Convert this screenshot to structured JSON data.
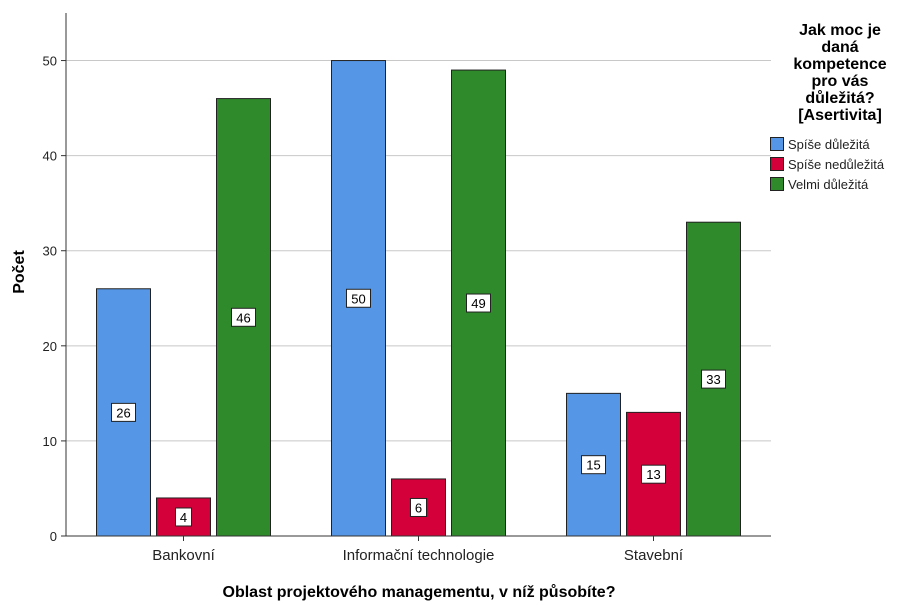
{
  "chart_data": {
    "type": "bar",
    "xlabel": "Oblast projektového managementu, v níž působíte?",
    "ylabel": "Počet",
    "categories": [
      "Bankovní",
      "Informační technologie",
      "Stavební"
    ],
    "ylim": [
      0,
      55
    ],
    "yticks": [
      0,
      10,
      20,
      30,
      40,
      50
    ],
    "grid": true,
    "legend_position": "right",
    "legend_title": "Jak moc je daná kompetence pro vás důležitá? [Asertivita]",
    "legend_title_lines": [
      "Jak moc je",
      "daná",
      "kompetence",
      "pro vás",
      "důležitá?",
      "[Asertivita]"
    ],
    "series": [
      {
        "name": "Spíše důležitá",
        "color": "#5596e6",
        "values": [
          26,
          50,
          15
        ]
      },
      {
        "name": "Spíše nedůležitá",
        "color": "#d3003a",
        "values": [
          4,
          6,
          13
        ]
      },
      {
        "name": "Velmi důležitá",
        "color": "#2e8a2a",
        "values": [
          46,
          49,
          33
        ]
      }
    ]
  }
}
